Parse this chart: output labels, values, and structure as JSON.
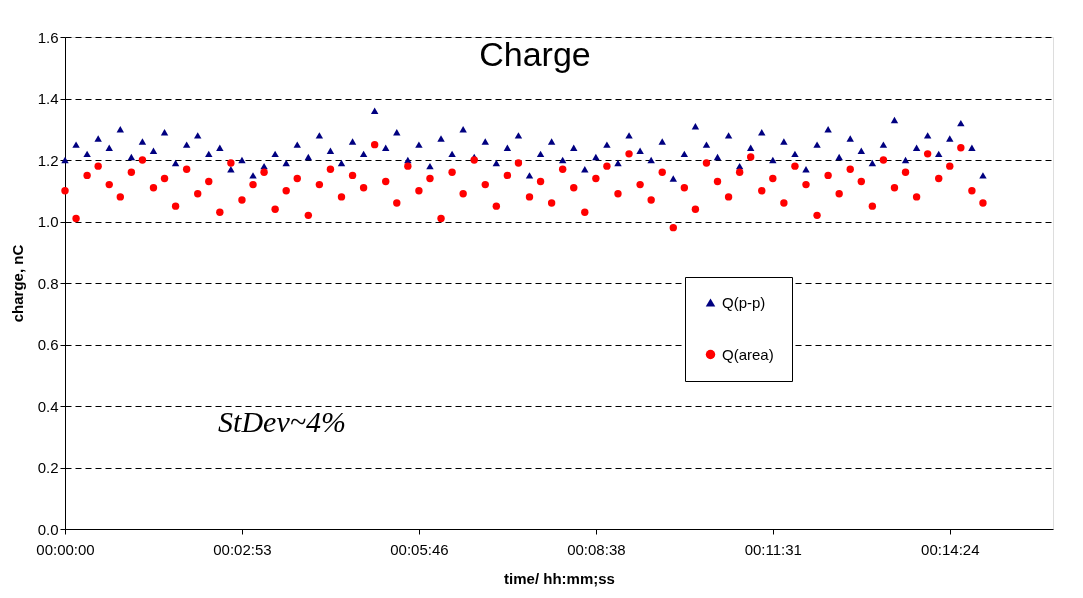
{
  "chart_data": {
    "type": "scatter",
    "title": "Charge",
    "xlabel": "time/ hh:mm;ss",
    "ylabel": "charge, nC",
    "annotations": [
      "StDev~4%"
    ],
    "x": [
      0.0,
      0.003,
      0.006,
      0.009,
      0.012,
      0.015,
      0.018,
      0.021,
      0.024,
      0.027,
      0.03,
      0.033,
      0.036,
      0.039,
      0.042,
      0.045,
      0.048,
      0.051,
      0.054,
      0.057,
      0.06,
      0.063,
      0.066,
      0.069,
      0.072,
      0.075,
      0.078,
      0.081,
      0.084,
      0.087,
      0.09,
      0.093,
      0.096,
      0.099,
      0.102,
      0.105,
      0.108,
      0.111,
      0.114,
      0.117,
      0.12,
      0.123,
      0.126,
      0.129,
      0.132,
      0.135,
      0.138,
      0.141,
      0.144,
      0.147,
      0.15,
      0.153,
      0.156,
      0.159,
      0.162,
      0.165,
      0.168,
      0.171,
      0.174,
      0.177,
      0.18,
      0.183,
      0.186,
      0.189,
      0.192,
      0.195,
      0.198,
      0.201,
      0.204,
      0.207,
      0.21,
      0.213,
      0.216,
      0.219,
      0.222,
      0.225,
      0.228,
      0.231,
      0.234,
      0.237,
      0.24,
      0.243,
      0.246,
      0.249
    ],
    "series": [
      {
        "name": "Q(p-p)",
        "color": "#000080",
        "marker": "triangle",
        "values": [
          1.2,
          1.25,
          1.22,
          1.27,
          1.24,
          1.3,
          1.21,
          1.26,
          1.23,
          1.29,
          1.19,
          1.25,
          1.28,
          1.22,
          1.24,
          1.17,
          1.2,
          1.15,
          1.18,
          1.22,
          1.19,
          1.25,
          1.21,
          1.28,
          1.23,
          1.19,
          1.26,
          1.22,
          1.36,
          1.24,
          1.29,
          1.2,
          1.25,
          1.18,
          1.27,
          1.22,
          1.3,
          1.21,
          1.26,
          1.19,
          1.24,
          1.28,
          1.15,
          1.22,
          1.26,
          1.2,
          1.24,
          1.17,
          1.21,
          1.25,
          1.19,
          1.28,
          1.23,
          1.2,
          1.26,
          1.14,
          1.22,
          1.31,
          1.25,
          1.21,
          1.28,
          1.18,
          1.24,
          1.29,
          1.2,
          1.26,
          1.22,
          1.17,
          1.25,
          1.3,
          1.21,
          1.27,
          1.23,
          1.19,
          1.25,
          1.33,
          1.2,
          1.24,
          1.28,
          1.22,
          1.27,
          1.32,
          1.24,
          1.15
        ]
      },
      {
        "name": "Q(area)",
        "color": "#ff0000",
        "marker": "circle",
        "values": [
          1.1,
          1.01,
          1.15,
          1.18,
          1.12,
          1.08,
          1.16,
          1.2,
          1.11,
          1.14,
          1.05,
          1.17,
          1.09,
          1.13,
          1.03,
          1.19,
          1.07,
          1.12,
          1.16,
          1.04,
          1.1,
          1.14,
          1.02,
          1.12,
          1.17,
          1.08,
          1.15,
          1.11,
          1.25,
          1.13,
          1.06,
          1.18,
          1.1,
          1.14,
          1.01,
          1.16,
          1.09,
          1.2,
          1.12,
          1.05,
          1.15,
          1.19,
          1.08,
          1.13,
          1.06,
          1.17,
          1.11,
          1.03,
          1.14,
          1.18,
          1.09,
          1.22,
          1.12,
          1.07,
          1.16,
          0.98,
          1.11,
          1.04,
          1.19,
          1.13,
          1.08,
          1.16,
          1.21,
          1.1,
          1.14,
          1.06,
          1.18,
          1.12,
          1.02,
          1.15,
          1.09,
          1.17,
          1.13,
          1.05,
          1.2,
          1.11,
          1.16,
          1.08,
          1.22,
          1.14,
          1.18,
          1.24,
          1.1,
          1.06
        ]
      }
    ],
    "xlim": [
      0,
      0.268
    ],
    "xticks": [
      {
        "value": 0,
        "label": "00:00:00"
      },
      {
        "value": 0.048,
        "label": "00:02:53"
      },
      {
        "value": 0.096,
        "label": "00:05:46"
      },
      {
        "value": 0.144,
        "label": "00:08:38"
      },
      {
        "value": 0.192,
        "label": "00:11:31"
      },
      {
        "value": 0.24,
        "label": "00:14:24"
      }
    ],
    "ylim": [
      0,
      1.6
    ],
    "yticks": [
      {
        "value": 0,
        "label": "0.0"
      },
      0.2,
      0.4,
      0.6,
      0.8,
      {
        "value": 1,
        "label": "1.0"
      },
      1.2,
      1.4,
      1.6
    ],
    "grid": "y",
    "legend": "right"
  }
}
